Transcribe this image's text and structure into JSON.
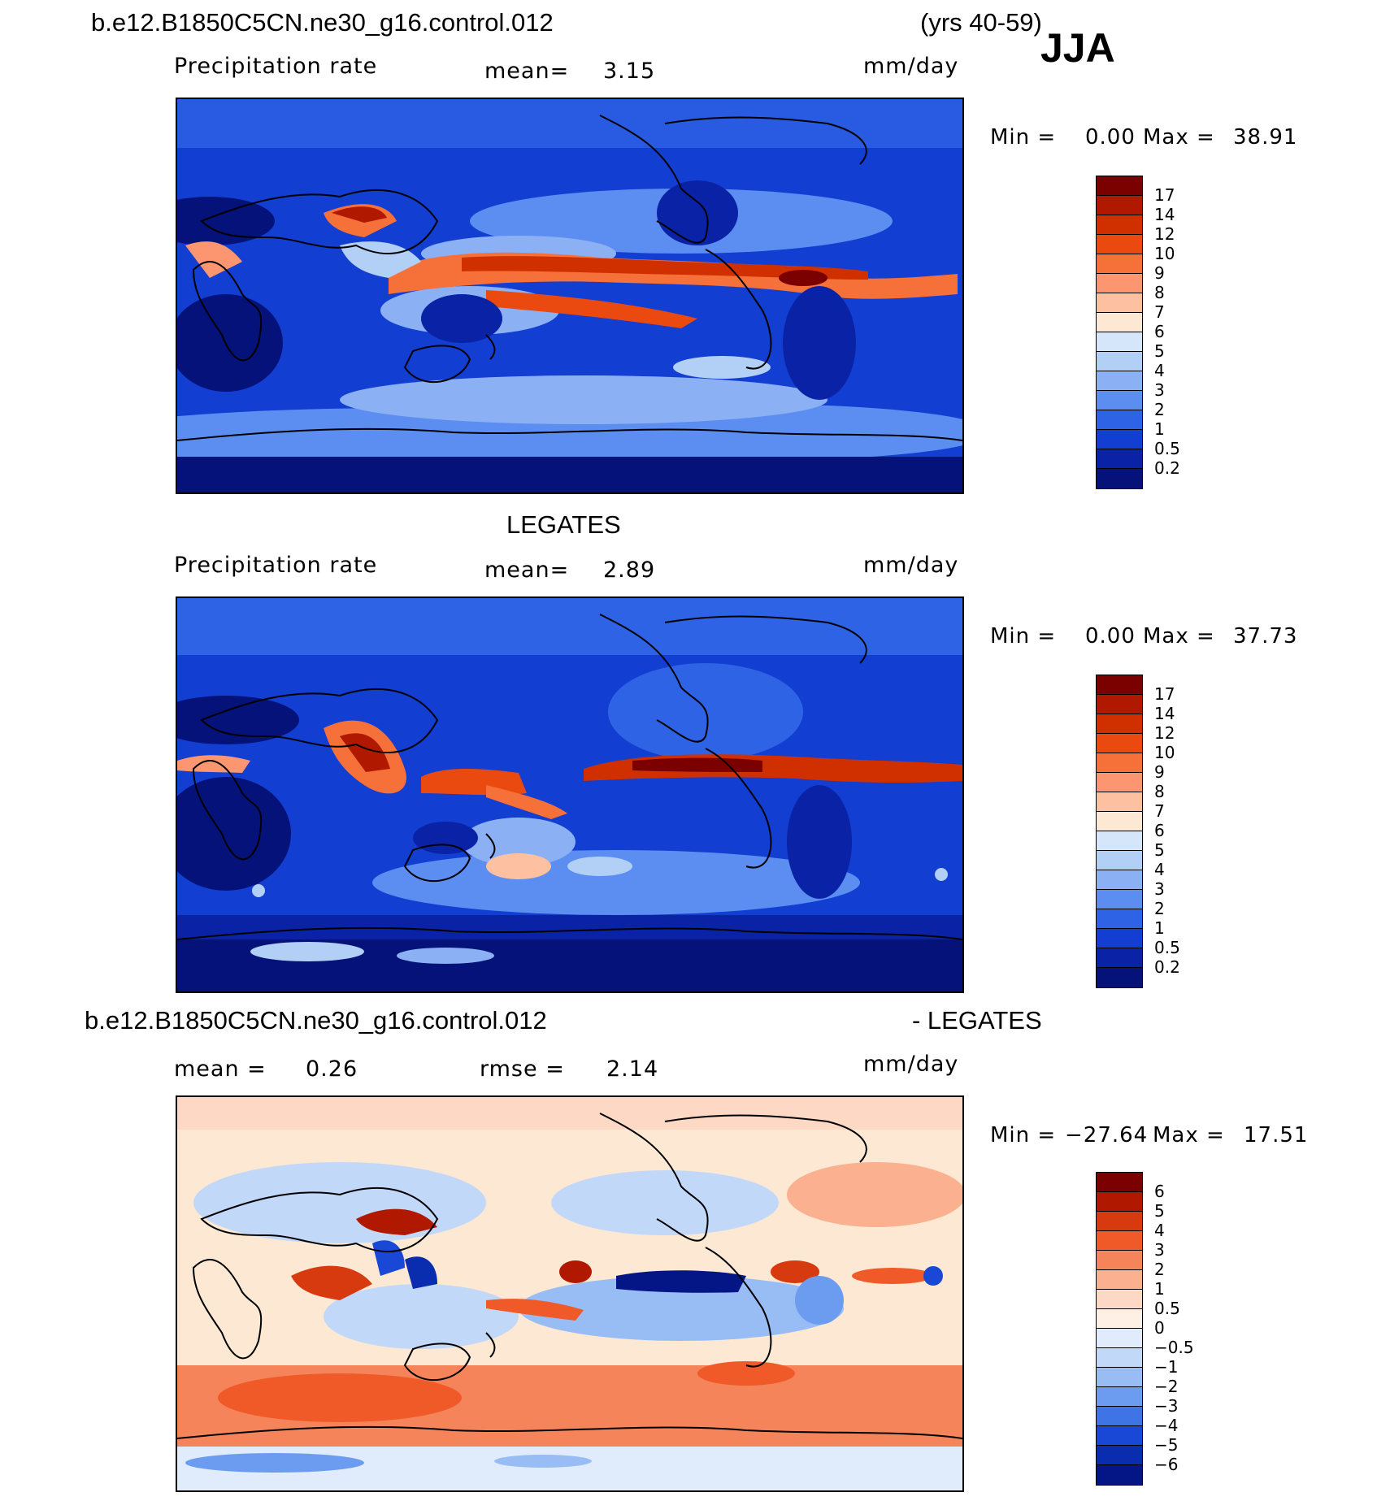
{
  "header": {
    "case_title": "b.e12.B1850C5CN.ne30_g16.control.012",
    "years": "(yrs 40-59)",
    "season": "JJA"
  },
  "panels": [
    {
      "id": "model",
      "title": "",
      "field": "Precipitation rate",
      "mean_label": "mean=",
      "mean_value": "3.15",
      "units": "mm/day",
      "min_label": "Min =",
      "min_value": "0.00",
      "max_label": "Max =",
      "max_value": "38.91",
      "levels": [
        "17",
        "14",
        "12",
        "10",
        "9",
        "8",
        "7",
        "6",
        "5",
        "4",
        "3",
        "2",
        "1",
        "0.5",
        "0.2"
      ],
      "colors": [
        "#7b0000",
        "#b01800",
        "#d03000",
        "#ea4a10",
        "#f6703a",
        "#fc9670",
        "#fdc0a0",
        "#fde8d4",
        "#d6e6fa",
        "#b2cff6",
        "#8cb0f4",
        "#5b8ef0",
        "#2f63e6",
        "#123ed2",
        "#0a23a6",
        "#04127a"
      ]
    },
    {
      "id": "obs",
      "title": "LEGATES",
      "field": "Precipitation rate",
      "mean_label": "mean=",
      "mean_value": "2.89",
      "units": "mm/day",
      "min_label": "Min =",
      "min_value": "0.00",
      "max_label": "Max =",
      "max_value": "37.73",
      "levels": [
        "17",
        "14",
        "12",
        "10",
        "9",
        "8",
        "7",
        "6",
        "5",
        "4",
        "3",
        "2",
        "1",
        "0.5",
        "0.2"
      ],
      "colors": [
        "#7b0000",
        "#b01800",
        "#d03000",
        "#ea4a10",
        "#f6703a",
        "#fc9670",
        "#fdc0a0",
        "#fde8d4",
        "#d6e6fa",
        "#b2cff6",
        "#8cb0f4",
        "#5b8ef0",
        "#2f63e6",
        "#123ed2",
        "#0a23a6",
        "#04127a"
      ]
    },
    {
      "id": "diff",
      "title_left": "b.e12.B1850C5CN.ne30_g16.control.012",
      "title_right": "- LEGATES",
      "mean_label": "mean =",
      "mean_value": "0.26",
      "rmse_label": "rmse =",
      "rmse_value": "2.14",
      "units": "mm/day",
      "min_label": "Min =",
      "min_value": "−27.64",
      "max_label": "Max =",
      "max_value": "17.51",
      "levels": [
        "6",
        "5",
        "4",
        "3",
        "2",
        "1",
        "0.5",
        "0",
        "−0.5",
        "−1",
        "−2",
        "−3",
        "−4",
        "−5",
        "−6"
      ],
      "colors": [
        "#7b0000",
        "#b01800",
        "#d83a10",
        "#f05a28",
        "#f6845a",
        "#fbb090",
        "#fdd8c4",
        "#fff0e6",
        "#e0ecfc",
        "#c2d8f8",
        "#98bcf4",
        "#6c9cf0",
        "#3e74e6",
        "#1a48d6",
        "#0a2cae",
        "#041686"
      ]
    }
  ]
}
